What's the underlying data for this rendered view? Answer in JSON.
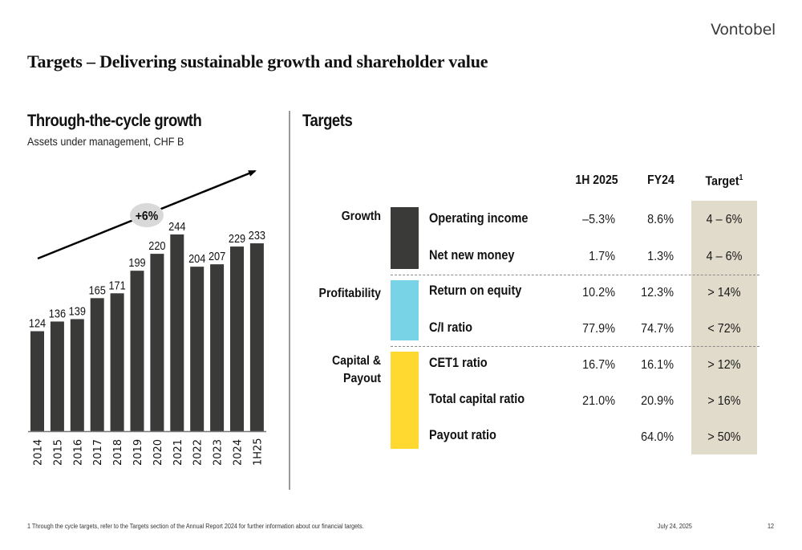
{
  "header": {
    "logo": "Vontobel",
    "title": "Targets – Delivering sustainable growth and shareholder value"
  },
  "left_panel": {
    "title": "Through-the-cycle growth",
    "subtitle": "Assets under management, CHF B",
    "cagr_badge": "+6%"
  },
  "chart_data": {
    "type": "bar",
    "title": "Through-the-cycle growth",
    "subtitle": "Assets under management, CHF B",
    "categories": [
      "2014",
      "2015",
      "2016",
      "2017",
      "2018",
      "2019",
      "2020",
      "2021",
      "2022",
      "2023",
      "2024",
      "1H25"
    ],
    "values": [
      124,
      136,
      139,
      165,
      171,
      199,
      220,
      244,
      204,
      207,
      229,
      233
    ],
    "data_labels": [
      "124",
      "136",
      "139",
      "165",
      "171",
      "199",
      "220",
      "244",
      "204",
      "207",
      "229",
      "233"
    ],
    "xlabel": "",
    "ylabel": "",
    "ylim": [
      0,
      250
    ],
    "grid": false,
    "bar_color": "#3a3b38",
    "annotation": {
      "type": "trend-arrow",
      "label": "+6%"
    }
  },
  "right_panel": {
    "title": "Targets",
    "columns": {
      "h1_2025": "1H 2025",
      "fy24": "FY24",
      "target": "Target",
      "target_footnote": "1"
    },
    "groups": [
      {
        "label": "Growth",
        "color": "#3a3b38",
        "rows": [
          {
            "metric": "Operating income",
            "h1_2025": "–5.3%",
            "fy24": "8.6%",
            "target": "4 – 6%"
          },
          {
            "metric": "Net new money",
            "h1_2025": "1.7%",
            "fy24": "1.3%",
            "target": "4 – 6%"
          }
        ]
      },
      {
        "label": "Profitability",
        "color": "#79d3e6",
        "rows": [
          {
            "metric": "Return on equity",
            "h1_2025": "10.2%",
            "fy24": "12.3%",
            "target": "> 14%"
          },
          {
            "metric": "C/I ratio",
            "h1_2025": "77.9%",
            "fy24": "74.7%",
            "target": "< 72%"
          }
        ]
      },
      {
        "label_line1": "Capital &",
        "label_line2": "Payout",
        "color": "#ffd92f",
        "rows": [
          {
            "metric": "CET1 ratio",
            "h1_2025": "16.7%",
            "fy24": "16.1%",
            "target": "> 12%"
          },
          {
            "metric": "Total capital ratio",
            "h1_2025": "21.0%",
            "fy24": "20.9%",
            "target": "> 16%"
          },
          {
            "metric": "Payout ratio",
            "h1_2025": "",
            "fy24": "64.0%",
            "target": "> 50%"
          }
        ]
      }
    ]
  },
  "footer": {
    "footnote": "1 Through the cycle targets, refer to the Targets section of the Annual Report 2024 for further information about our financial targets.",
    "date": "July 24, 2025",
    "page": "12"
  },
  "colors": {
    "bar": "#3a3b38",
    "growth": "#3a3b38",
    "profitability": "#79d3e6",
    "capital": "#ffd92f",
    "target_bg": "#e0dbca"
  }
}
